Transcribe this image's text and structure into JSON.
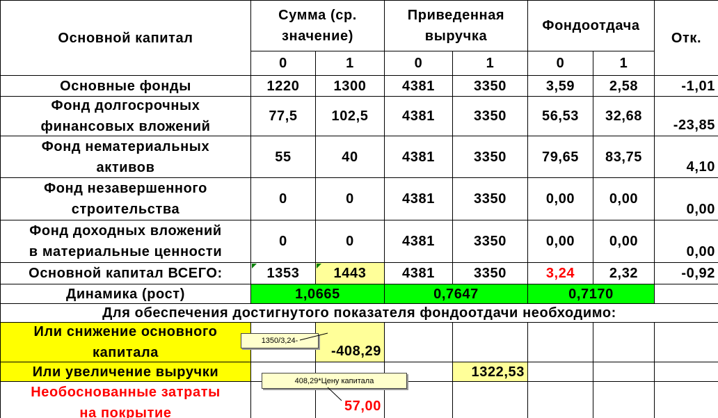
{
  "table": {
    "header": [
      [
        "Основной капитал"
      ],
      [
        "Сумма (ср.",
        "значение)"
      ],
      [
        "Приведенная",
        "выручка"
      ],
      [
        "Фондоотдача"
      ],
      [
        "Отк."
      ]
    ],
    "subheader": [
      "0",
      "1",
      "0",
      "1",
      "0",
      "1"
    ],
    "rows": [
      {
        "label": [
          "Основные фонды"
        ],
        "values": [
          "1220",
          "1300",
          "4381",
          "3350",
          "3,59",
          "2,58",
          "-1,01"
        ]
      },
      {
        "label": [
          "Фонд долгосрочных",
          "финансовых вложений"
        ],
        "values": [
          "77,5",
          "102,5",
          "4381",
          "3350",
          "56,53",
          "32,68",
          "-23,85"
        ]
      },
      {
        "label": [
          "Фонд нематериальных",
          "активов"
        ],
        "values": [
          "55",
          "40",
          "4381",
          "3350",
          "79,65",
          "83,75",
          "4,10"
        ]
      },
      {
        "label": [
          "Фонд незавершенного",
          "строительства"
        ],
        "values": [
          "0",
          "0",
          "4381",
          "3350",
          "0,00",
          "0,00",
          "0,00"
        ]
      },
      {
        "label": [
          "Фонд доходных вложений",
          "в материальные ценности"
        ],
        "values": [
          "0",
          "0",
          "4381",
          "3350",
          "0,00",
          "0,00",
          "0,00"
        ]
      },
      {
        "label": [
          "Основной капитал ВСЕГО:"
        ],
        "values": [
          "1353",
          "1443",
          "4381",
          "3350",
          "3,24",
          "2,32",
          "-0,92"
        ]
      }
    ],
    "dynamics": {
      "label": "Динамика (рост)",
      "values": [
        "1,0665",
        "0,7647",
        "0,7170"
      ]
    },
    "note": "Для обеспечения достигнутого показателя фондоотдачи необходимо:",
    "reduction": {
      "label": [
        "Или снижение основного",
        "капитала"
      ],
      "value": "-408,29",
      "comment": "1350/3,24-"
    },
    "increase": {
      "label": [
        "Или увеличение выручки"
      ],
      "value": "1322,53"
    },
    "costs": {
      "label": [
        "Необоснованные затраты",
        "на покрытие"
      ],
      "value": "57,00",
      "comment": "408,29*Цену капитала"
    }
  }
}
